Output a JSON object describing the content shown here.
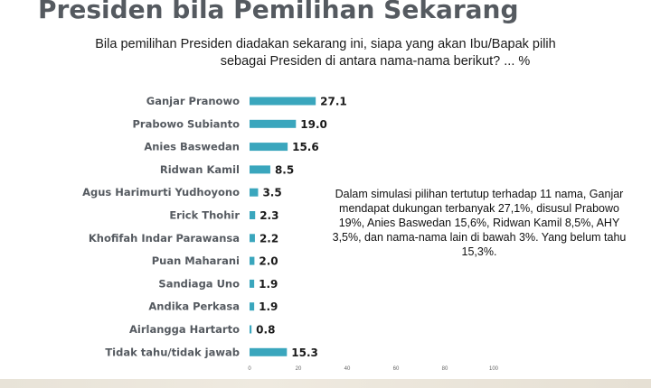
{
  "header": {
    "title": "Presiden bila Pemilihan Sekarang",
    "question_line1": "Bila pemilihan Presiden diadakan sekarang ini, siapa yang akan Ibu/Bapak pilih",
    "question_line2": "sebagai Presiden di antara nama-nama berikut? ... %"
  },
  "annotation": {
    "text": "Dalam simulasi pilihan tertutup terhadap 11 nama, Ganjar mendapat dukungan terbanyak 27,1%, disusul Prabowo 19%, Anies Baswedan 15,6%, Ridwan Kamil 8,5%, AHY 3,5%, dan nama-nama lain di bawah 3%. Yang belum tahu 15,3%."
  },
  "colors": {
    "bar": "#3aa6bd",
    "label": "#555a60",
    "title": "#555a60"
  },
  "chart_data": {
    "type": "bar",
    "orientation": "horizontal",
    "categories": [
      "Ganjar Pranowo",
      "Prabowo Subianto",
      "Anies Baswedan",
      "Ridwan Kamil",
      "Agus Harimurti Yudhoyono",
      "Erick Thohir",
      "Khofifah Indar Parawansa",
      "Puan Maharani",
      "Sandiaga Uno",
      "Andika Perkasa",
      "Airlangga Hartarto",
      "Tidak tahu/tidak jawab"
    ],
    "values": [
      27.1,
      19.0,
      15.6,
      8.5,
      3.5,
      2.3,
      2.2,
      2.0,
      1.9,
      1.9,
      0.8,
      15.3
    ],
    "value_labels": [
      "27.1",
      "19.0",
      "15.6",
      "8.5",
      "3.5",
      "2.3",
      "2.2",
      "2.0",
      "1.9",
      "1.9",
      "0.8",
      "15.3"
    ],
    "xlim": [
      0,
      100
    ],
    "xticks": [
      0,
      20,
      40,
      60,
      80,
      100
    ],
    "xtick_labels": [
      "0",
      "20",
      "40",
      "60",
      "80",
      "100"
    ],
    "grid": false,
    "legend": "none"
  }
}
